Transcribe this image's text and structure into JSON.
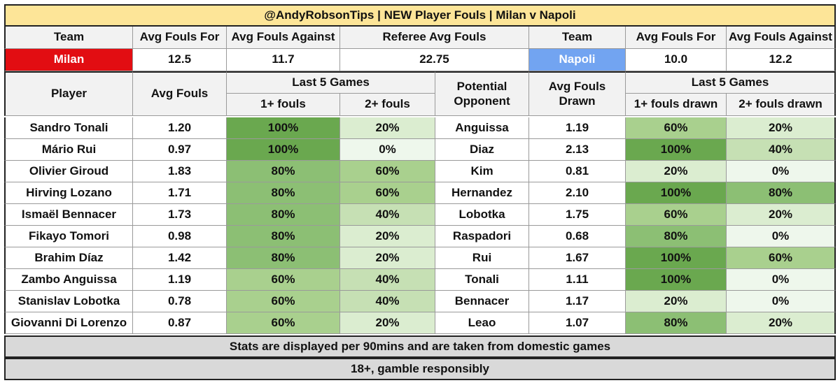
{
  "title": "@AndyRobsonTips | NEW Player Fouls | Milan v Napoli",
  "summary": {
    "headers": [
      "Team",
      "Avg Fouls For",
      "Avg Fouls Against",
      "Referee Avg Fouls",
      "Team",
      "Avg Fouls For",
      "Avg Fouls Against"
    ],
    "home": {
      "team": "Milan",
      "fouls_for": "12.5",
      "fouls_against": "11.7",
      "color": "#e20d12"
    },
    "referee_avg": "22.75",
    "away": {
      "team": "Napoli",
      "fouls_for": "10.0",
      "fouls_against": "12.2",
      "color": "#72a4f1"
    }
  },
  "table_headers": {
    "player": "Player",
    "avg_fouls": "Avg Fouls",
    "last5": "Last 5 Games",
    "one_plus": "1+ fouls",
    "two_plus": "2+ fouls",
    "potential_opponent": "Potential Opponent",
    "avg_fouls_drawn": "Avg Fouls Drawn",
    "last5_drawn": "Last 5 Games",
    "one_plus_drawn": "1+ fouls drawn",
    "two_plus_drawn": "2+ fouls drawn"
  },
  "rows": [
    {
      "player": "Sandro Tonali",
      "avg": "1.20",
      "p1": "100%",
      "p2": "20%",
      "opp": "Anguissa",
      "drawn": "1.19",
      "d1": "60%",
      "d2": "20%"
    },
    {
      "player": "Mário Rui",
      "avg": "0.97",
      "p1": "100%",
      "p2": "0%",
      "opp": "Diaz",
      "drawn": "2.13",
      "d1": "100%",
      "d2": "40%"
    },
    {
      "player": "Olivier Giroud",
      "avg": "1.83",
      "p1": "80%",
      "p2": "60%",
      "opp": "Kim",
      "drawn": "0.81",
      "d1": "20%",
      "d2": "0%"
    },
    {
      "player": "Hirving Lozano",
      "avg": "1.71",
      "p1": "80%",
      "p2": "60%",
      "opp": "Hernandez",
      "drawn": "2.10",
      "d1": "100%",
      "d2": "80%"
    },
    {
      "player": "Ismaël Bennacer",
      "avg": "1.73",
      "p1": "80%",
      "p2": "40%",
      "opp": "Lobotka",
      "drawn": "1.75",
      "d1": "60%",
      "d2": "20%"
    },
    {
      "player": "Fikayo Tomori",
      "avg": "0.98",
      "p1": "80%",
      "p2": "20%",
      "opp": "Raspadori",
      "drawn": "0.68",
      "d1": "80%",
      "d2": "0%"
    },
    {
      "player": "Brahim Díaz",
      "avg": "1.42",
      "p1": "80%",
      "p2": "20%",
      "opp": "Rui",
      "drawn": "1.67",
      "d1": "100%",
      "d2": "60%"
    },
    {
      "player": "Zambo Anguissa",
      "avg": "1.19",
      "p1": "60%",
      "p2": "40%",
      "opp": "Tonali",
      "drawn": "1.11",
      "d1": "100%",
      "d2": "0%"
    },
    {
      "player": "Stanislav Lobotka",
      "avg": "0.78",
      "p1": "60%",
      "p2": "40%",
      "opp": "Bennacer",
      "drawn": "1.17",
      "d1": "20%",
      "d2": "0%"
    },
    {
      "player": "Giovanni Di Lorenzo",
      "avg": "0.87",
      "p1": "60%",
      "p2": "20%",
      "opp": "Leao",
      "drawn": "1.07",
      "d1": "80%",
      "d2": "20%"
    }
  ],
  "heat_colors": {
    "100%": "#6aa84f",
    "80%": "#8cbf74",
    "60%": "#a9d08e",
    "40%": "#c6e0b4",
    "20%": "#dbedd0",
    "0%": "#eef7ec"
  },
  "footer_note": "Stats are displayed per 90mins and are taken from domestic games",
  "footer_gamble": "18+, gamble responsibly"
}
